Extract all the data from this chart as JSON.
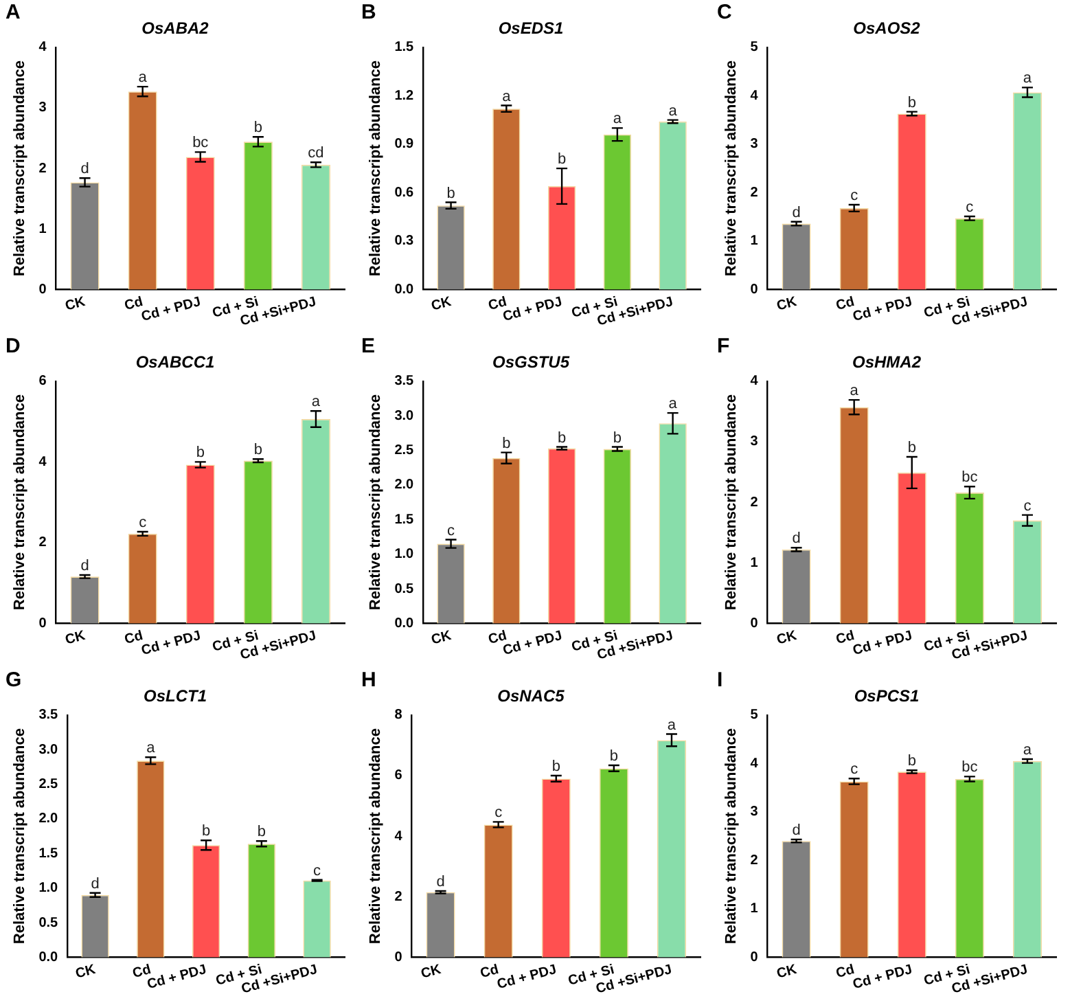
{
  "chart_data": [
    {
      "type": "bar",
      "title": "OsABA2",
      "ylabel": "Relative transcript abundance",
      "categories": [
        "CK",
        "Cd",
        "Cd + PDJ",
        "Cd + Si",
        "Cd +Si+PDJ"
      ],
      "values": [
        1.77,
        3.27,
        2.19,
        2.44,
        2.06
      ],
      "errors": [
        0.07,
        0.08,
        0.08,
        0.08,
        0.04
      ],
      "colors": [
        "#808080",
        "#c46b32",
        "#ff5050",
        "#6cc832",
        "#88ddaa"
      ],
      "ylim": [
        0,
        4
      ],
      "yticks": [
        0,
        1,
        2,
        3,
        4
      ],
      "annotations": [
        "A",
        {
          "text": "d",
          "x": "CK",
          "y": 1.84
        },
        {
          "text": "a",
          "x": "Cd",
          "y": 3.35
        },
        {
          "text": "bc",
          "x": "Cd + PDJ",
          "y": 2.27
        },
        {
          "text": "b",
          "x": "Cd + Si",
          "y": 2.52
        },
        {
          "text": "cd",
          "x": "Cd +Si+PDJ",
          "y": 2.1
        }
      ]
    },
    {
      "type": "bar",
      "title": "OsEDS1",
      "ylabel": "Relative transcript abundance",
      "categories": [
        "CK",
        "Cd",
        "Cd + PDJ",
        "Cd + Si",
        "Cd +Si+PDJ"
      ],
      "values": [
        0.52,
        1.12,
        0.64,
        0.96,
        1.04
      ],
      "errors": [
        0.02,
        0.02,
        0.11,
        0.04,
        0.01
      ],
      "colors": [
        "#808080",
        "#c46b32",
        "#ff5050",
        "#6cc832",
        "#88ddaa"
      ],
      "ylim": [
        0,
        1.5
      ],
      "yticks": [
        {
          "value": 0,
          "label": "0.0"
        },
        {
          "value": 0.3,
          "label": "0.3"
        },
        {
          "value": 0.6,
          "label": "0.6"
        },
        {
          "value": 0.9,
          "label": "0.9"
        },
        {
          "value": 1.2,
          "label": "1.2"
        },
        {
          "value": 1.5,
          "label": "1.5"
        }
      ],
      "annotations": [
        "B",
        {
          "text": "b",
          "x": "CK",
          "y": 0.54
        },
        {
          "text": "a",
          "x": "Cd",
          "y": 1.14
        },
        {
          "text": "b",
          "x": "Cd + PDJ",
          "y": 0.75
        },
        {
          "text": "a",
          "x": "Cd + Si",
          "y": 1.0
        },
        {
          "text": "a",
          "x": "Cd +Si+PDJ",
          "y": 1.05
        }
      ]
    },
    {
      "type": "bar",
      "title": "OsAOS2",
      "ylabel": "Relative transcript abundance",
      "categories": [
        "CK",
        "Cd",
        "Cd + PDJ",
        "Cd + Si",
        "Cd +Si+PDJ"
      ],
      "values": [
        1.36,
        1.68,
        3.63,
        1.47,
        4.07
      ],
      "errors": [
        0.04,
        0.07,
        0.04,
        0.04,
        0.1
      ],
      "colors": [
        "#808080",
        "#c46b32",
        "#ff5050",
        "#6cc832",
        "#88ddaa"
      ],
      "ylim": [
        0,
        5
      ],
      "yticks": [
        0,
        1,
        2,
        3,
        4,
        5
      ],
      "annotations": [
        "C",
        {
          "text": "d",
          "x": "CK",
          "y": 1.4
        },
        {
          "text": "c",
          "x": "Cd",
          "y": 1.75
        },
        {
          "text": "b",
          "x": "Cd + PDJ",
          "y": 3.67
        },
        {
          "text": "c",
          "x": "Cd + Si",
          "y": 1.51
        },
        {
          "text": "a",
          "x": "Cd +Si+PDJ",
          "y": 4.17
        }
      ]
    },
    {
      "type": "bar",
      "title": "OsABCC1",
      "ylabel": "Relative transcript abundance",
      "categories": [
        "CK",
        "Cd",
        "Cd + PDJ",
        "Cd + Si",
        "Cd +Si+PDJ"
      ],
      "values": [
        1.16,
        2.22,
        3.93,
        4.03,
        5.06
      ],
      "errors": [
        0.04,
        0.05,
        0.07,
        0.04,
        0.2
      ],
      "colors": [
        "#808080",
        "#c46b32",
        "#ff5050",
        "#6cc832",
        "#88ddaa"
      ],
      "ylim": [
        0,
        6
      ],
      "yticks": [
        0,
        2,
        4,
        6
      ],
      "annotations": [
        "D",
        {
          "text": "d",
          "x": "CK",
          "y": 1.2
        },
        {
          "text": "c",
          "x": "Cd",
          "y": 2.27
        },
        {
          "text": "b",
          "x": "Cd + PDJ",
          "y": 4.0
        },
        {
          "text": "b",
          "x": "Cd + Si",
          "y": 4.07
        },
        {
          "text": "a",
          "x": "Cd +Si+PDJ",
          "y": 5.26
        }
      ]
    },
    {
      "type": "bar",
      "title": "OsGSTU5",
      "ylabel": "Relative transcript abundance",
      "categories": [
        "CK",
        "Cd",
        "Cd + PDJ",
        "Cd + Si",
        "Cd +Si+PDJ"
      ],
      "values": [
        1.15,
        2.39,
        2.53,
        2.52,
        2.89
      ],
      "errors": [
        0.06,
        0.08,
        0.02,
        0.03,
        0.15
      ],
      "colors": [
        "#808080",
        "#c46b32",
        "#ff5050",
        "#6cc832",
        "#88ddaa"
      ],
      "ylim": [
        0,
        3.5
      ],
      "yticks": [
        {
          "value": 0,
          "label": "0.0"
        },
        {
          "value": 0.5,
          "label": "0.5"
        },
        {
          "value": 1,
          "label": "1.0"
        },
        {
          "value": 1.5,
          "label": "1.5"
        },
        {
          "value": 2,
          "label": "2.0"
        },
        {
          "value": 2.5,
          "label": "2.5"
        },
        {
          "value": 3,
          "label": "3.0"
        },
        {
          "value": 3.5,
          "label": "3.5"
        }
      ],
      "annotations": [
        "E",
        {
          "text": "c",
          "x": "CK",
          "y": 1.21
        },
        {
          "text": "b",
          "x": "Cd",
          "y": 2.47
        },
        {
          "text": "b",
          "x": "Cd + PDJ",
          "y": 2.55
        },
        {
          "text": "b",
          "x": "Cd + Si",
          "y": 2.55
        },
        {
          "text": "a",
          "x": "Cd +Si+PDJ",
          "y": 3.04
        }
      ]
    },
    {
      "type": "bar",
      "title": "OsHMA2",
      "ylabel": "Relative transcript abundance",
      "categories": [
        "CK",
        "Cd",
        "Cd + PDJ",
        "Cd + Si",
        "Cd +Si+PDJ"
      ],
      "values": [
        1.22,
        3.57,
        2.49,
        2.16,
        1.7
      ],
      "errors": [
        0.03,
        0.12,
        0.26,
        0.1,
        0.09
      ],
      "colors": [
        "#808080",
        "#c46b32",
        "#ff5050",
        "#6cc832",
        "#88ddaa"
      ],
      "ylim": [
        0,
        4
      ],
      "yticks": [
        0,
        1,
        2,
        3,
        4
      ],
      "annotations": [
        "F",
        {
          "text": "d",
          "x": "CK",
          "y": 1.25
        },
        {
          "text": "a",
          "x": "Cd",
          "y": 3.69
        },
        {
          "text": "b",
          "x": "Cd + PDJ",
          "y": 2.75
        },
        {
          "text": "bc",
          "x": "Cd + Si",
          "y": 2.26
        },
        {
          "text": "c",
          "x": "Cd +Si+PDJ",
          "y": 1.79
        }
      ]
    },
    {
      "type": "bar",
      "title": "OsLCT1",
      "ylabel": "Relative transcript abundance",
      "categories": [
        "CK",
        "Cd",
        "Cd + PDJ",
        "Cd + Si",
        "Cd +Si+PDJ"
      ],
      "values": [
        0.9,
        2.84,
        1.62,
        1.64,
        1.11
      ],
      "errors": [
        0.03,
        0.05,
        0.07,
        0.04,
        0.01
      ],
      "colors": [
        "#808080",
        "#c46b32",
        "#ff5050",
        "#6cc832",
        "#88ddaa"
      ],
      "ylim": [
        0,
        3.5
      ],
      "yticks": [
        {
          "value": 0,
          "label": "0.0"
        },
        {
          "value": 0.5,
          "label": "0.5"
        },
        {
          "value": 1,
          "label": "1.0"
        },
        {
          "value": 1.5,
          "label": "1.5"
        },
        {
          "value": 2,
          "label": "2.0"
        },
        {
          "value": 2.5,
          "label": "2.5"
        },
        {
          "value": 3,
          "label": "3.0"
        },
        {
          "value": 3.5,
          "label": "3.5"
        }
      ],
      "annotations": [
        "G",
        {
          "text": "d",
          "x": "CK",
          "y": 0.93
        },
        {
          "text": "a",
          "x": "Cd",
          "y": 2.89
        },
        {
          "text": "b",
          "x": "Cd + PDJ",
          "y": 1.69
        },
        {
          "text": "b",
          "x": "Cd + Si",
          "y": 1.68
        },
        {
          "text": "c",
          "x": "Cd +Si+PDJ",
          "y": 1.12
        }
      ]
    },
    {
      "type": "bar",
      "title": "OsNAC5",
      "ylabel": "Relative transcript abundance",
      "categories": [
        "CK",
        "Cd",
        "Cd + PDJ",
        "Cd + Si",
        "Cd +Si+PDJ"
      ],
      "values": [
        2.15,
        4.38,
        5.9,
        6.24,
        7.17
      ],
      "errors": [
        0.04,
        0.09,
        0.1,
        0.1,
        0.2
      ],
      "colors": [
        "#808080",
        "#c46b32",
        "#ff5050",
        "#6cc832",
        "#88ddaa"
      ],
      "ylim": [
        0,
        8
      ],
      "yticks": [
        0,
        2,
        4,
        6,
        8
      ],
      "annotations": [
        "H",
        {
          "text": "d",
          "x": "CK",
          "y": 2.19
        },
        {
          "text": "c",
          "x": "Cd",
          "y": 4.47
        },
        {
          "text": "b",
          "x": "Cd + PDJ",
          "y": 6.0
        },
        {
          "text": "b",
          "x": "Cd + Si",
          "y": 6.34
        },
        {
          "text": "a",
          "x": "Cd +Si+PDJ",
          "y": 7.37
        }
      ]
    },
    {
      "type": "bar",
      "title": "OsPCS1",
      "ylabel": "Relative transcript abundance",
      "categories": [
        "CK",
        "Cd",
        "Cd + PDJ",
        "Cd + Si",
        "Cd +Si+PDJ"
      ],
      "values": [
        2.4,
        3.63,
        3.83,
        3.68,
        4.05
      ],
      "errors": [
        0.03,
        0.06,
        0.03,
        0.05,
        0.04
      ],
      "colors": [
        "#808080",
        "#c46b32",
        "#ff5050",
        "#6cc832",
        "#88ddaa"
      ],
      "ylim": [
        0,
        5
      ],
      "yticks": [
        0,
        1,
        2,
        3,
        4,
        5
      ],
      "annotations": [
        "I",
        {
          "text": "d",
          "x": "CK",
          "y": 2.43
        },
        {
          "text": "c",
          "x": "Cd",
          "y": 3.69
        },
        {
          "text": "b",
          "x": "Cd + PDJ",
          "y": 3.86
        },
        {
          "text": "bc",
          "x": "Cd + Si",
          "y": 3.73
        },
        {
          "text": "a",
          "x": "Cd +Si+PDJ",
          "y": 4.09
        }
      ]
    }
  ]
}
